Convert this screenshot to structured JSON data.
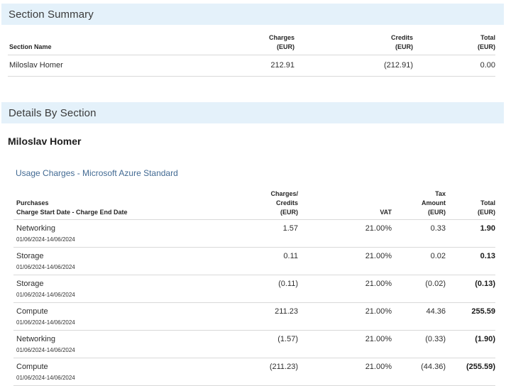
{
  "colors": {
    "banner_background": "#e4f1fa",
    "accent_blue_text": "#426a93",
    "row_border": "#d9d9d9"
  },
  "section_summary": {
    "title": "Section Summary",
    "columns": {
      "name": "Section Name",
      "charges": [
        "Charges",
        "(EUR)"
      ],
      "credits": [
        "Credits",
        "(EUR)"
      ],
      "total": [
        "Total",
        "(EUR)"
      ]
    },
    "rows": [
      {
        "name": "Miloslav Homer",
        "charges": "212.91",
        "credits": "(212.91)",
        "total": "0.00"
      }
    ]
  },
  "details": {
    "title": "Details By Section",
    "section_heading": "Miloslav Homer",
    "subsection_heading": "Usage Charges - Microsoft Azure Standard",
    "columns": {
      "purchases": [
        "Purchases",
        "Charge Start Date - Charge End Date"
      ],
      "charges_credits": [
        "Charges/",
        "Credits",
        "(EUR)"
      ],
      "vat": "VAT",
      "tax_amount": [
        "Tax",
        "Amount",
        "(EUR)"
      ],
      "total": [
        "Total",
        "(EUR)"
      ]
    },
    "rows": [
      {
        "name": "Networking",
        "period": "01/06/2024-14/06/2024",
        "amount": "1.57",
        "vat": "21.00%",
        "tax": "0.33",
        "total": "1.90"
      },
      {
        "name": "Storage",
        "period": "01/06/2024-14/06/2024",
        "amount": "0.11",
        "vat": "21.00%",
        "tax": "0.02",
        "total": "0.13"
      },
      {
        "name": "Storage",
        "period": "01/06/2024-14/06/2024",
        "amount": "(0.11)",
        "vat": "21.00%",
        "tax": "(0.02)",
        "total": "(0.13)"
      },
      {
        "name": "Compute",
        "period": "01/06/2024-14/06/2024",
        "amount": "211.23",
        "vat": "21.00%",
        "tax": "44.36",
        "total": "255.59"
      },
      {
        "name": "Networking",
        "period": "01/06/2024-14/06/2024",
        "amount": "(1.57)",
        "vat": "21.00%",
        "tax": "(0.33)",
        "total": "(1.90)"
      },
      {
        "name": "Compute",
        "period": "01/06/2024-14/06/2024",
        "amount": "(211.23)",
        "vat": "21.00%",
        "tax": "(44.36)",
        "total": "(255.59)"
      }
    ]
  }
}
